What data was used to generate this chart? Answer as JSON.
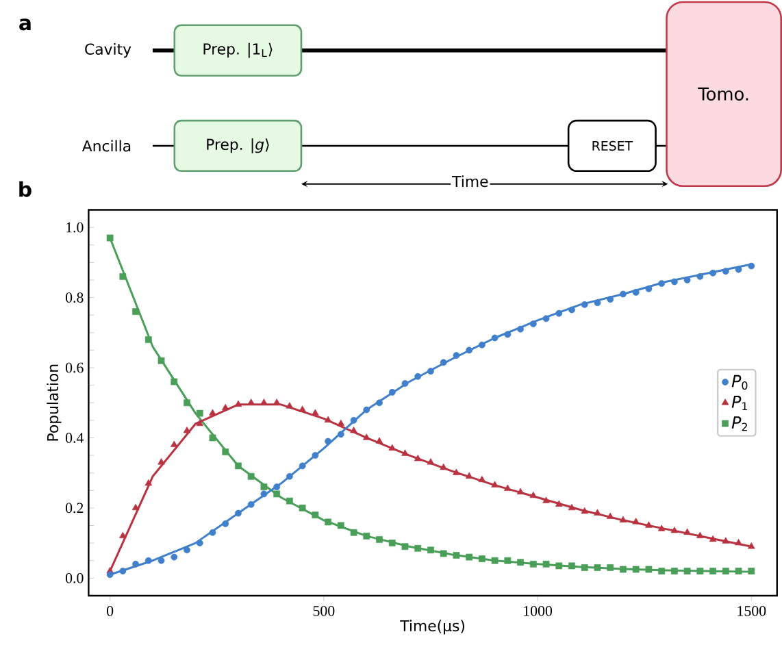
{
  "chart_data": [
    {
      "type": "other",
      "title": "a",
      "annotations": [
        "Cavity",
        "Prep. |1$_{L}$⟩",
        "Ancilla",
        "Prep. |*g*⟩",
        "RESET",
        "Time",
        "Tomo."
      ]
    },
    {
      "type": "scatter",
      "title": "b",
      "xlabel": "Time(µs)",
      "ylabel": "Population",
      "xlim": [
        -50,
        1560
      ],
      "ylim": [
        -0.05,
        1.05
      ],
      "xticks": [
        0,
        500,
        1000,
        1500
      ],
      "yticks": [
        {
          "value": 0,
          "label": "0.0"
        },
        {
          "value": 0.05,
          "label": null
        },
        {
          "value": 0.1,
          "label": null
        },
        {
          "value": 0.15,
          "label": null
        },
        {
          "value": 0.2,
          "label": "0.2"
        },
        {
          "value": 0.25,
          "label": null
        },
        {
          "value": 0.3,
          "label": null
        },
        {
          "value": 0.35,
          "label": null
        },
        {
          "value": 0.4,
          "label": "0.4"
        },
        {
          "value": 0.45,
          "label": null
        },
        {
          "value": 0.5,
          "label": null
        },
        {
          "value": 0.55,
          "label": null
        },
        {
          "value": 0.6,
          "label": "0.6"
        },
        {
          "value": 0.65,
          "label": null
        },
        {
          "value": 0.7,
          "label": null
        },
        {
          "value": 0.75,
          "label": null
        },
        {
          "value": 0.8,
          "label": "0.8"
        },
        {
          "value": 0.85,
          "label": null
        },
        {
          "value": 0.9,
          "label": null
        },
        {
          "value": 0.95,
          "label": null
        },
        {
          "value": 1.0,
          "label": "1.0"
        }
      ],
      "legend": "right",
      "x": [
        0,
        30,
        60,
        90,
        120,
        150,
        180,
        210,
        240,
        270,
        300,
        330,
        360,
        390,
        420,
        450,
        480,
        510,
        540,
        570,
        600,
        630,
        660,
        690,
        720,
        750,
        780,
        810,
        840,
        870,
        900,
        930,
        960,
        990,
        1020,
        1050,
        1080,
        1110,
        1140,
        1170,
        1200,
        1230,
        1260,
        1290,
        1320,
        1350,
        1380,
        1410,
        1440,
        1470,
        1500
      ],
      "series": [
        {
          "name": "*P*$_{0}$",
          "color": "#3f7fcb",
          "marker": "circle",
          "values": [
            0.01,
            0.02,
            0.04,
            0.05,
            0.05,
            0.06,
            0.08,
            0.1,
            0.13,
            0.155,
            0.185,
            0.21,
            0.24,
            0.26,
            0.29,
            0.32,
            0.35,
            0.39,
            0.41,
            0.45,
            0.48,
            0.5,
            0.53,
            0.555,
            0.575,
            0.59,
            0.615,
            0.635,
            0.65,
            0.665,
            0.685,
            0.695,
            0.71,
            0.725,
            0.74,
            0.755,
            0.765,
            0.78,
            0.785,
            0.795,
            0.81,
            0.815,
            0.825,
            0.84,
            0.845,
            0.85,
            0.86,
            0.87,
            0.875,
            0.88,
            0.89
          ]
        },
        {
          "name": "*P*$_{1}$",
          "color": "#b83240",
          "marker": "triangle",
          "values": [
            0.02,
            0.12,
            0.2,
            0.27,
            0.33,
            0.38,
            0.42,
            0.44,
            0.47,
            0.485,
            0.495,
            0.5,
            0.5,
            0.5,
            0.49,
            0.48,
            0.47,
            0.45,
            0.44,
            0.42,
            0.4,
            0.39,
            0.37,
            0.355,
            0.34,
            0.33,
            0.315,
            0.3,
            0.29,
            0.28,
            0.265,
            0.255,
            0.245,
            0.235,
            0.22,
            0.21,
            0.2,
            0.19,
            0.185,
            0.175,
            0.165,
            0.16,
            0.15,
            0.14,
            0.135,
            0.13,
            0.12,
            0.11,
            0.105,
            0.1,
            0.09
          ]
        },
        {
          "name": "*P*$_{2}$",
          "color": "#4a9f58",
          "marker": "square",
          "values": [
            0.97,
            0.86,
            0.76,
            0.68,
            0.62,
            0.56,
            0.5,
            0.47,
            0.4,
            0.36,
            0.32,
            0.29,
            0.26,
            0.24,
            0.22,
            0.2,
            0.18,
            0.16,
            0.15,
            0.13,
            0.12,
            0.11,
            0.1,
            0.09,
            0.085,
            0.08,
            0.07,
            0.065,
            0.06,
            0.055,
            0.05,
            0.05,
            0.045,
            0.04,
            0.04,
            0.035,
            0.035,
            0.03,
            0.03,
            0.03,
            0.025,
            0.025,
            0.025,
            0.02,
            0.02,
            0.02,
            0.02,
            0.02,
            0.02,
            0.02,
            0.02
          ]
        },
        {
          "type": "line",
          "color": "#3f7fcb",
          "marker": "none",
          "x": [
            0,
            100,
            200,
            300,
            400,
            500,
            600,
            700,
            800,
            900,
            1000,
            1100,
            1200,
            1300,
            1400,
            1500
          ],
          "values": [
            0.01,
            0.05,
            0.1,
            0.185,
            0.27,
            0.37,
            0.48,
            0.56,
            0.625,
            0.685,
            0.735,
            0.78,
            0.81,
            0.845,
            0.87,
            0.895
          ]
        },
        {
          "type": "line",
          "color": "#b83240",
          "marker": "none",
          "x": [
            0,
            100,
            200,
            300,
            400,
            500,
            600,
            700,
            800,
            900,
            1000,
            1100,
            1200,
            1300,
            1400,
            1500
          ],
          "values": [
            0.02,
            0.29,
            0.44,
            0.495,
            0.495,
            0.455,
            0.4,
            0.35,
            0.305,
            0.265,
            0.23,
            0.195,
            0.165,
            0.14,
            0.115,
            0.09
          ]
        },
        {
          "type": "line",
          "color": "#4a9f58",
          "marker": "none",
          "x": [
            0,
            100,
            200,
            300,
            400,
            500,
            600,
            700,
            800,
            900,
            1000,
            1100,
            1200,
            1300,
            1400,
            1500
          ],
          "values": [
            0.97,
            0.66,
            0.47,
            0.32,
            0.23,
            0.165,
            0.12,
            0.09,
            0.067,
            0.05,
            0.04,
            0.032,
            0.026,
            0.022,
            0.02,
            0.018
          ]
        }
      ]
    }
  ]
}
